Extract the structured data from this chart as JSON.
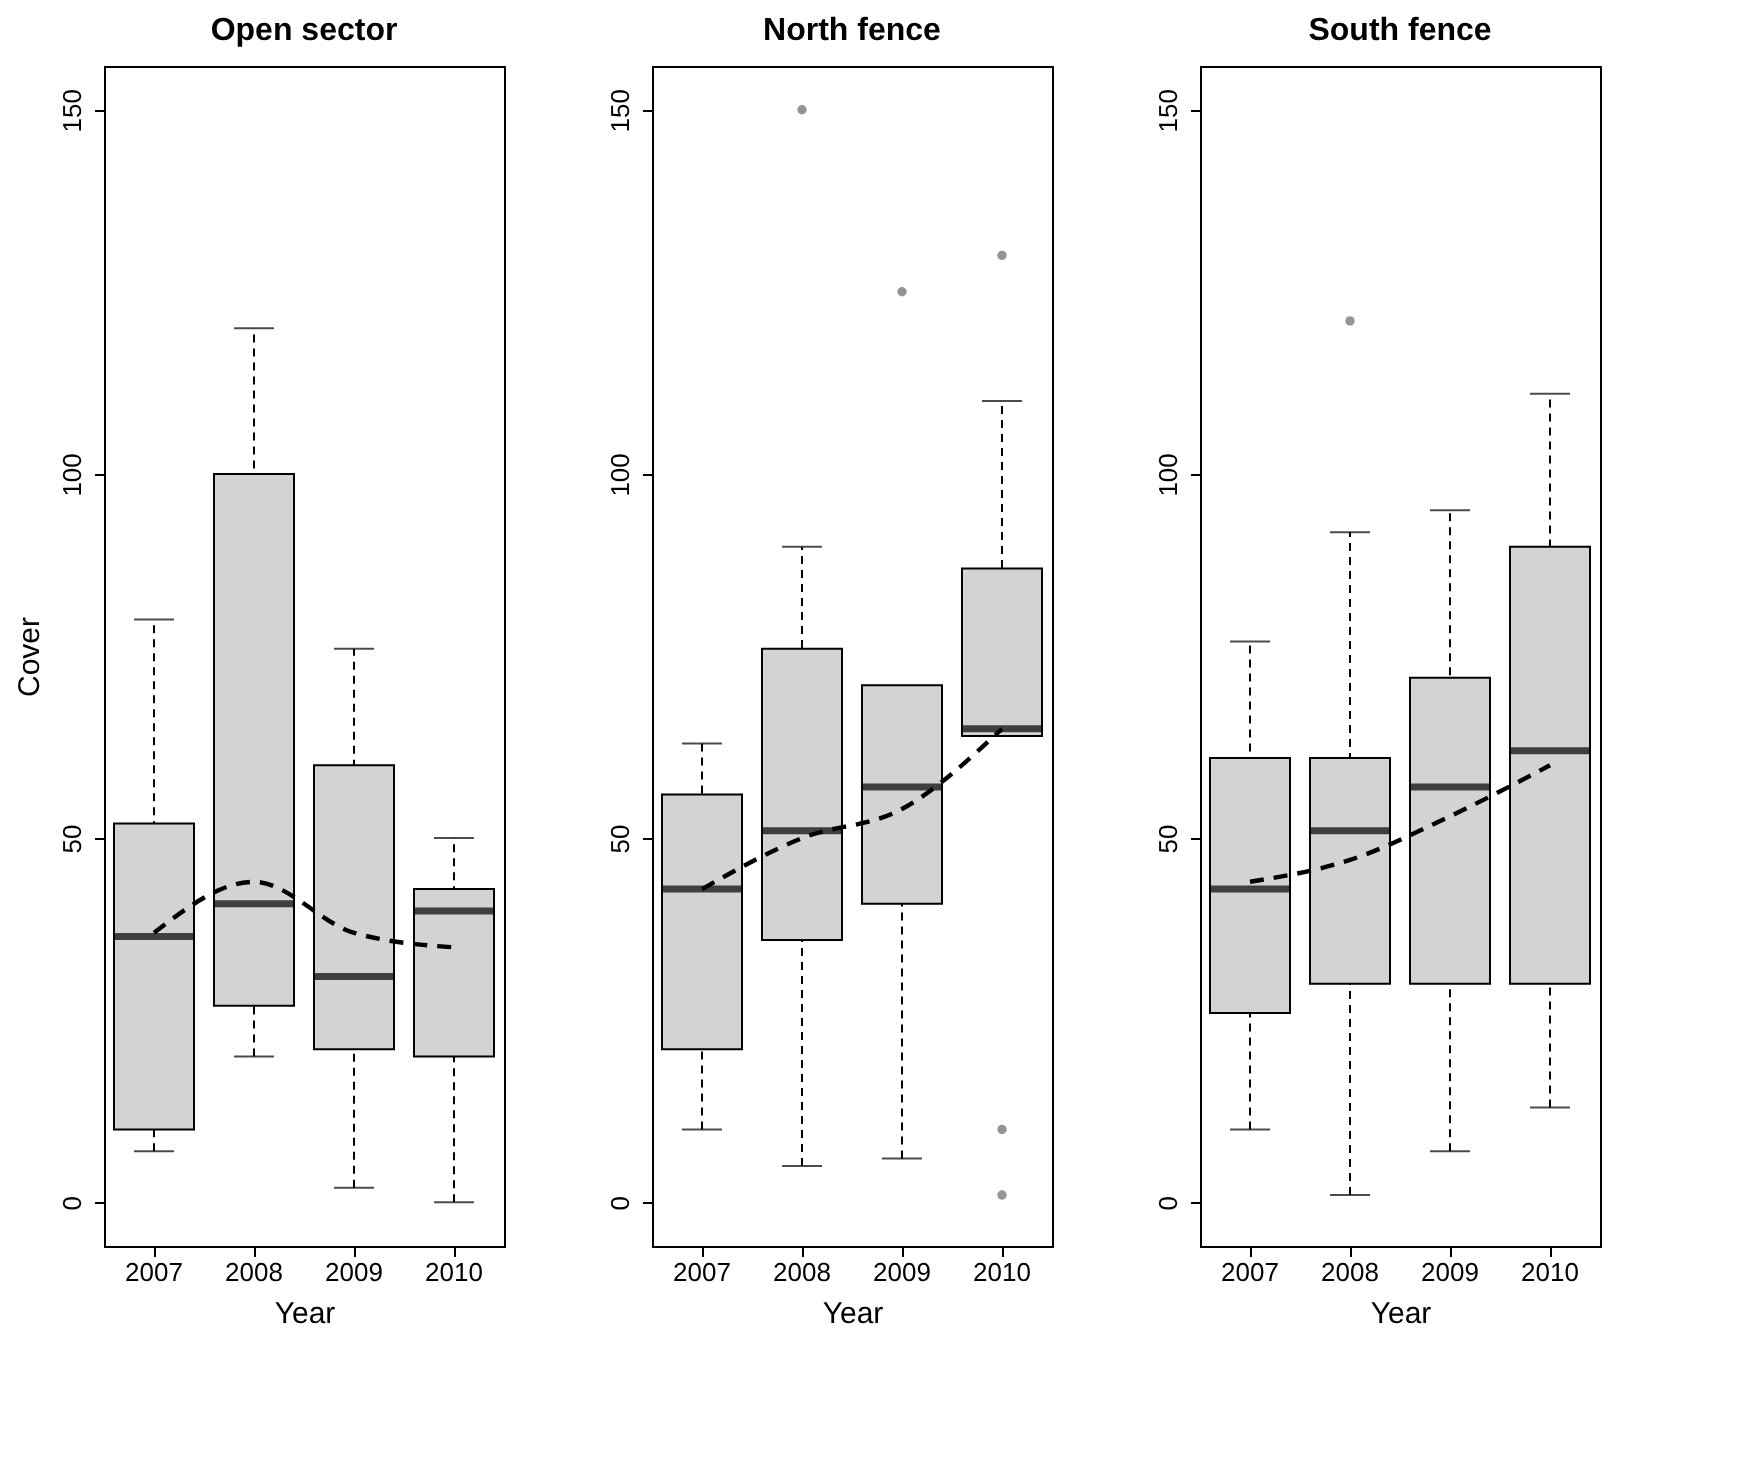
{
  "chart_data": [
    {
      "type": "box",
      "title": "Open sector",
      "xlabel": "Year",
      "ylabel": "Cover",
      "categories": [
        "2007",
        "2008",
        "2009",
        "2010"
      ],
      "ylim": [
        -6,
        156
      ],
      "yticks": [
        0,
        50,
        100,
        150
      ],
      "series": [
        {
          "type": "box",
          "color": "#d3d3d3",
          "boxes": [
            {
              "low": 7,
              "q1": 10,
              "median": 36.5,
              "q3": 52,
              "high": 80
            },
            {
              "low": 20,
              "q1": 27,
              "median": 41,
              "q3": 100,
              "high": 120
            },
            {
              "low": 2,
              "q1": 21,
              "median": 31,
              "q3": 60,
              "high": 76
            },
            {
              "low": 0,
              "q1": 20,
              "median": 40,
              "q3": 43,
              "high": 50
            }
          ]
        },
        {
          "type": "line",
          "color": "#000000",
          "line_style": "dashed",
          "values": [
            37,
            44,
            37,
            35
          ]
        }
      ]
    },
    {
      "type": "box",
      "title": "North fence",
      "xlabel": "Year",
      "categories": [
        "2007",
        "2008",
        "2009",
        "2010"
      ],
      "ylim": [
        -6,
        156
      ],
      "yticks": [
        0,
        50,
        100,
        150
      ],
      "series": [
        {
          "type": "box",
          "color": "#d3d3d3",
          "boxes": [
            {
              "low": 10,
              "q1": 21,
              "median": 43,
              "q3": 56,
              "high": 63
            },
            {
              "low": 5,
              "q1": 36,
              "median": 51,
              "q3": 76,
              "high": 90,
              "outliers": [
                150
              ]
            },
            {
              "low": 6,
              "q1": 41,
              "median": 57,
              "q3": 71,
              "high": 71,
              "outliers": [
                125
              ]
            },
            {
              "low": 64,
              "q1": 64,
              "median": 65,
              "q3": 87,
              "high": 110,
              "outliers": [
                10,
                1,
                130
              ]
            }
          ]
        },
        {
          "type": "line",
          "color": "#000000",
          "line_style": "dashed",
          "values": [
            43,
            50,
            54,
            65
          ]
        }
      ]
    },
    {
      "type": "box",
      "title": "South fence",
      "xlabel": "Year",
      "categories": [
        "2007",
        "2008",
        "2009",
        "2010"
      ],
      "ylim": [
        -6,
        156
      ],
      "yticks": [
        0,
        50,
        100,
        150
      ],
      "series": [
        {
          "type": "box",
          "color": "#d3d3d3",
          "boxes": [
            {
              "low": 10,
              "q1": 26,
              "median": 43,
              "q3": 61,
              "high": 77
            },
            {
              "low": 1,
              "q1": 30,
              "median": 51,
              "q3": 61,
              "high": 92,
              "outliers": [
                121
              ]
            },
            {
              "low": 7,
              "q1": 30,
              "median": 57,
              "q3": 72,
              "high": 95
            },
            {
              "low": 13,
              "q1": 30,
              "median": 62,
              "q3": 90,
              "high": 111
            }
          ]
        },
        {
          "type": "line",
          "color": "#000000",
          "line_style": "dashed",
          "values": [
            44,
            47,
            53,
            60
          ]
        }
      ]
    }
  ]
}
